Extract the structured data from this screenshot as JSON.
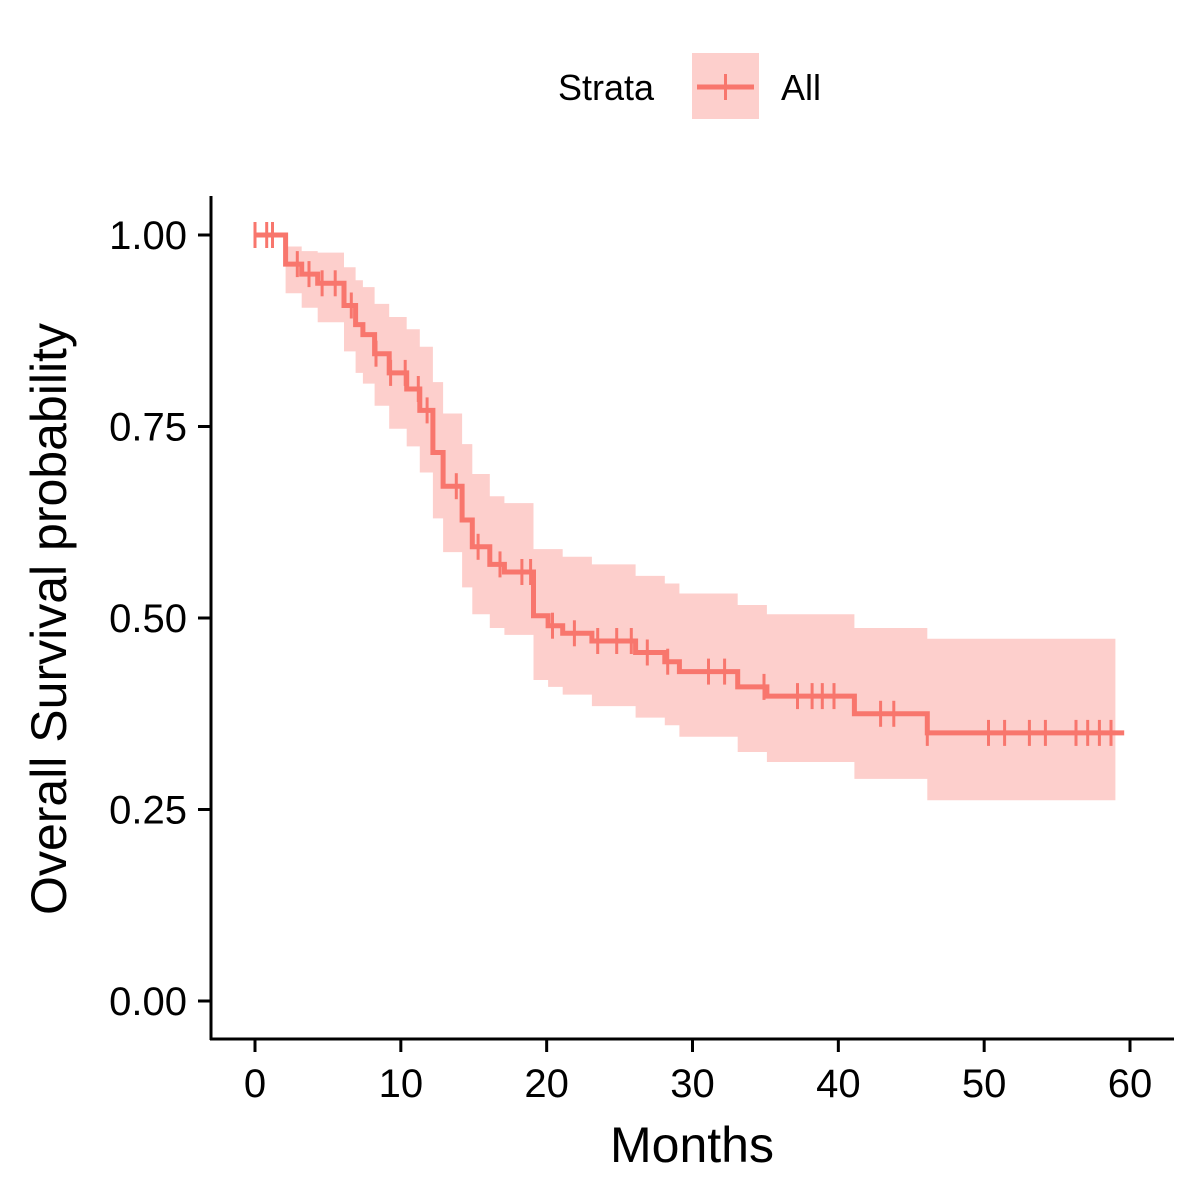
{
  "chart_data": {
    "type": "line",
    "subtype": "kaplan-meier-survival",
    "xlabel": "Months",
    "ylabel": "Overall Survival probability",
    "xlim": [
      -3,
      63
    ],
    "ylim": [
      -0.05,
      1.05
    ],
    "x_ticks": [
      0,
      10,
      20,
      30,
      40,
      50,
      60
    ],
    "y_ticks": [
      0.0,
      0.25,
      0.5,
      0.75,
      1.0
    ],
    "y_tick_labels": [
      "0.00",
      "0.25",
      "0.50",
      "0.75",
      "1.00"
    ],
    "grid": false,
    "legend": {
      "title": "Strata",
      "position": "top",
      "entries": [
        "All"
      ]
    },
    "series": [
      {
        "name": "All",
        "color": "#F8766D",
        "band_color": "#F8766D",
        "band_opacity": 0.35,
        "steps": [
          {
            "t": 0,
            "s": 1.0,
            "lo": 1.0,
            "hi": 1.0
          },
          {
            "t": 2.1,
            "s": 0.962,
            "lo": 0.924,
            "hi": 0.985
          },
          {
            "t": 3.2,
            "s": 0.949,
            "lo": 0.905,
            "hi": 0.979
          },
          {
            "t": 4.3,
            "s": 0.937,
            "lo": 0.886,
            "hi": 0.977
          },
          {
            "t": 6.1,
            "s": 0.908,
            "lo": 0.848,
            "hi": 0.958
          },
          {
            "t": 6.9,
            "s": 0.883,
            "lo": 0.82,
            "hi": 0.941
          },
          {
            "t": 7.4,
            "s": 0.87,
            "lo": 0.806,
            "hi": 0.932
          },
          {
            "t": 8.2,
            "s": 0.845,
            "lo": 0.777,
            "hi": 0.91
          },
          {
            "t": 9.2,
            "s": 0.82,
            "lo": 0.747,
            "hi": 0.893
          },
          {
            "t": 10.4,
            "s": 0.799,
            "lo": 0.724,
            "hi": 0.877
          },
          {
            "t": 11.3,
            "s": 0.771,
            "lo": 0.69,
            "hi": 0.854
          },
          {
            "t": 12.2,
            "s": 0.716,
            "lo": 0.63,
            "hi": 0.808
          },
          {
            "t": 12.9,
            "s": 0.672,
            "lo": 0.586,
            "hi": 0.767
          },
          {
            "t": 14.2,
            "s": 0.628,
            "lo": 0.54,
            "hi": 0.727
          },
          {
            "t": 14.9,
            "s": 0.593,
            "lo": 0.505,
            "hi": 0.688
          },
          {
            "t": 16.1,
            "s": 0.57,
            "lo": 0.487,
            "hi": 0.659
          },
          {
            "t": 17.1,
            "s": 0.56,
            "lo": 0.478,
            "hi": 0.65
          },
          {
            "t": 19.1,
            "s": 0.503,
            "lo": 0.419,
            "hi": 0.59
          },
          {
            "t": 20.1,
            "s": 0.49,
            "lo": 0.41,
            "hi": 0.59
          },
          {
            "t": 21.1,
            "s": 0.48,
            "lo": 0.4,
            "hi": 0.58
          },
          {
            "t": 23.1,
            "s": 0.47,
            "lo": 0.385,
            "hi": 0.57
          },
          {
            "t": 26.1,
            "s": 0.455,
            "lo": 0.37,
            "hi": 0.555
          },
          {
            "t": 28.1,
            "s": 0.443,
            "lo": 0.36,
            "hi": 0.545
          },
          {
            "t": 29.1,
            "s": 0.43,
            "lo": 0.345,
            "hi": 0.532
          },
          {
            "t": 33.1,
            "s": 0.41,
            "lo": 0.325,
            "hi": 0.517
          },
          {
            "t": 35.1,
            "s": 0.398,
            "lo": 0.312,
            "hi": 0.505
          },
          {
            "t": 41.1,
            "s": 0.375,
            "lo": 0.29,
            "hi": 0.487
          },
          {
            "t": 46.1,
            "s": 0.35,
            "lo": 0.262,
            "hi": 0.473
          },
          {
            "t": 59.0,
            "s": 0.35,
            "lo": 0.262,
            "hi": 0.473
          }
        ],
        "end_t": 59.6,
        "censor_times": [
          0,
          0.8,
          1.2,
          2.9,
          3.7,
          4.6,
          5.5,
          6.6,
          8.3,
          9.3,
          10.3,
          11.2,
          11.8,
          13.8,
          15.3,
          16.8,
          18.3,
          18.9,
          20.4,
          21.9,
          23.5,
          24.8,
          25.8,
          26.9,
          28.3,
          31.1,
          32.2,
          34.9,
          37.2,
          38.2,
          38.9,
          39.7,
          42.9,
          43.8,
          46.1,
          50.3,
          51.4,
          53.1,
          54.2,
          56.3,
          57.1,
          57.9,
          58.7
        ]
      }
    ]
  }
}
